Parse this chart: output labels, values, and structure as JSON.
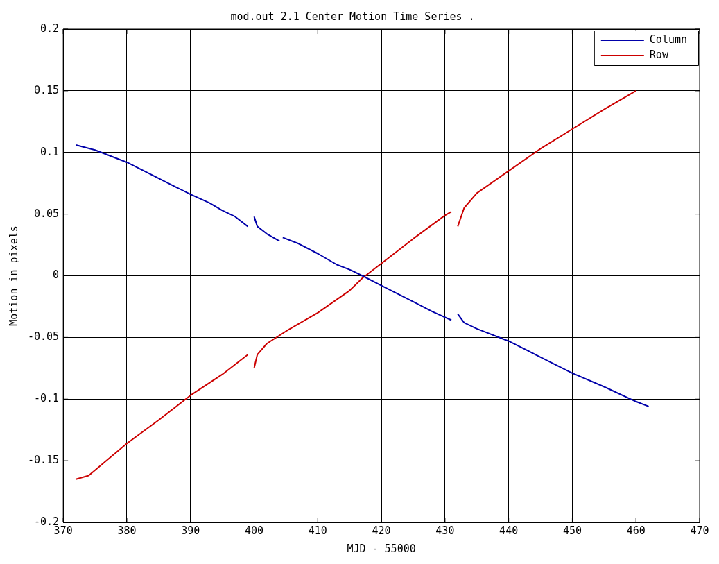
{
  "chart_data": {
    "type": "line",
    "title": "mod.out 2.1 Center Motion Time Series .",
    "xlabel": "MJD - 55000",
    "ylabel": "Motion in pixels",
    "xlim": [
      370,
      470
    ],
    "xticks": [
      370,
      380,
      390,
      400,
      410,
      420,
      430,
      440,
      450,
      460,
      470
    ],
    "ylim": [
      -0.2,
      0.2
    ],
    "yticks": [
      -0.2,
      -0.15,
      -0.1,
      -0.05,
      0,
      0.05,
      0.1,
      0.15,
      0.2
    ],
    "grid": true,
    "legend": "top right",
    "marker": "none",
    "line_style": "solid",
    "series": [
      {
        "name": "Column",
        "color": "#0000aa",
        "x": [
          372,
          375,
          380,
          385,
          390,
          393,
          395,
          397,
          399,
          399.5,
          400,
          400.5,
          402,
          404,
          404.2,
          404.5,
          407,
          410,
          413,
          415,
          417,
          420,
          425,
          428,
          431,
          431.5,
          432,
          433,
          435,
          440,
          445,
          450,
          455,
          460,
          462
        ],
        "values": [
          0.106,
          0.102,
          0.092,
          0.079,
          0.066,
          0.059,
          0.053,
          0.048,
          0.04,
          null,
          0.048,
          0.04,
          0.034,
          0.028,
          null,
          0.031,
          0.026,
          0.018,
          0.009,
          0.005,
          0,
          -0.008,
          -0.021,
          -0.029,
          -0.036,
          null,
          -0.031,
          -0.038,
          -0.043,
          -0.053,
          -0.066,
          -0.079,
          -0.09,
          -0.102,
          -0.106
        ]
      },
      {
        "name": "Row",
        "color": "#cc0000",
        "x": [
          372,
          374,
          380,
          385,
          390,
          395,
          399,
          399.5,
          400,
          400.5,
          402,
          405,
          410,
          415,
          417,
          420,
          425,
          430,
          431,
          431.5,
          432,
          433,
          435,
          440,
          445,
          450,
          455,
          460
        ],
        "values": [
          -0.165,
          -0.162,
          -0.136,
          -0.117,
          -0.097,
          -0.08,
          -0.064,
          null,
          -0.075,
          -0.064,
          -0.055,
          -0.045,
          -0.03,
          -0.012,
          -0.002,
          0.01,
          0.03,
          0.049,
          0.052,
          null,
          0.04,
          0.055,
          0.067,
          0.085,
          0.103,
          0.119,
          0.135,
          0.15
        ]
      }
    ]
  }
}
